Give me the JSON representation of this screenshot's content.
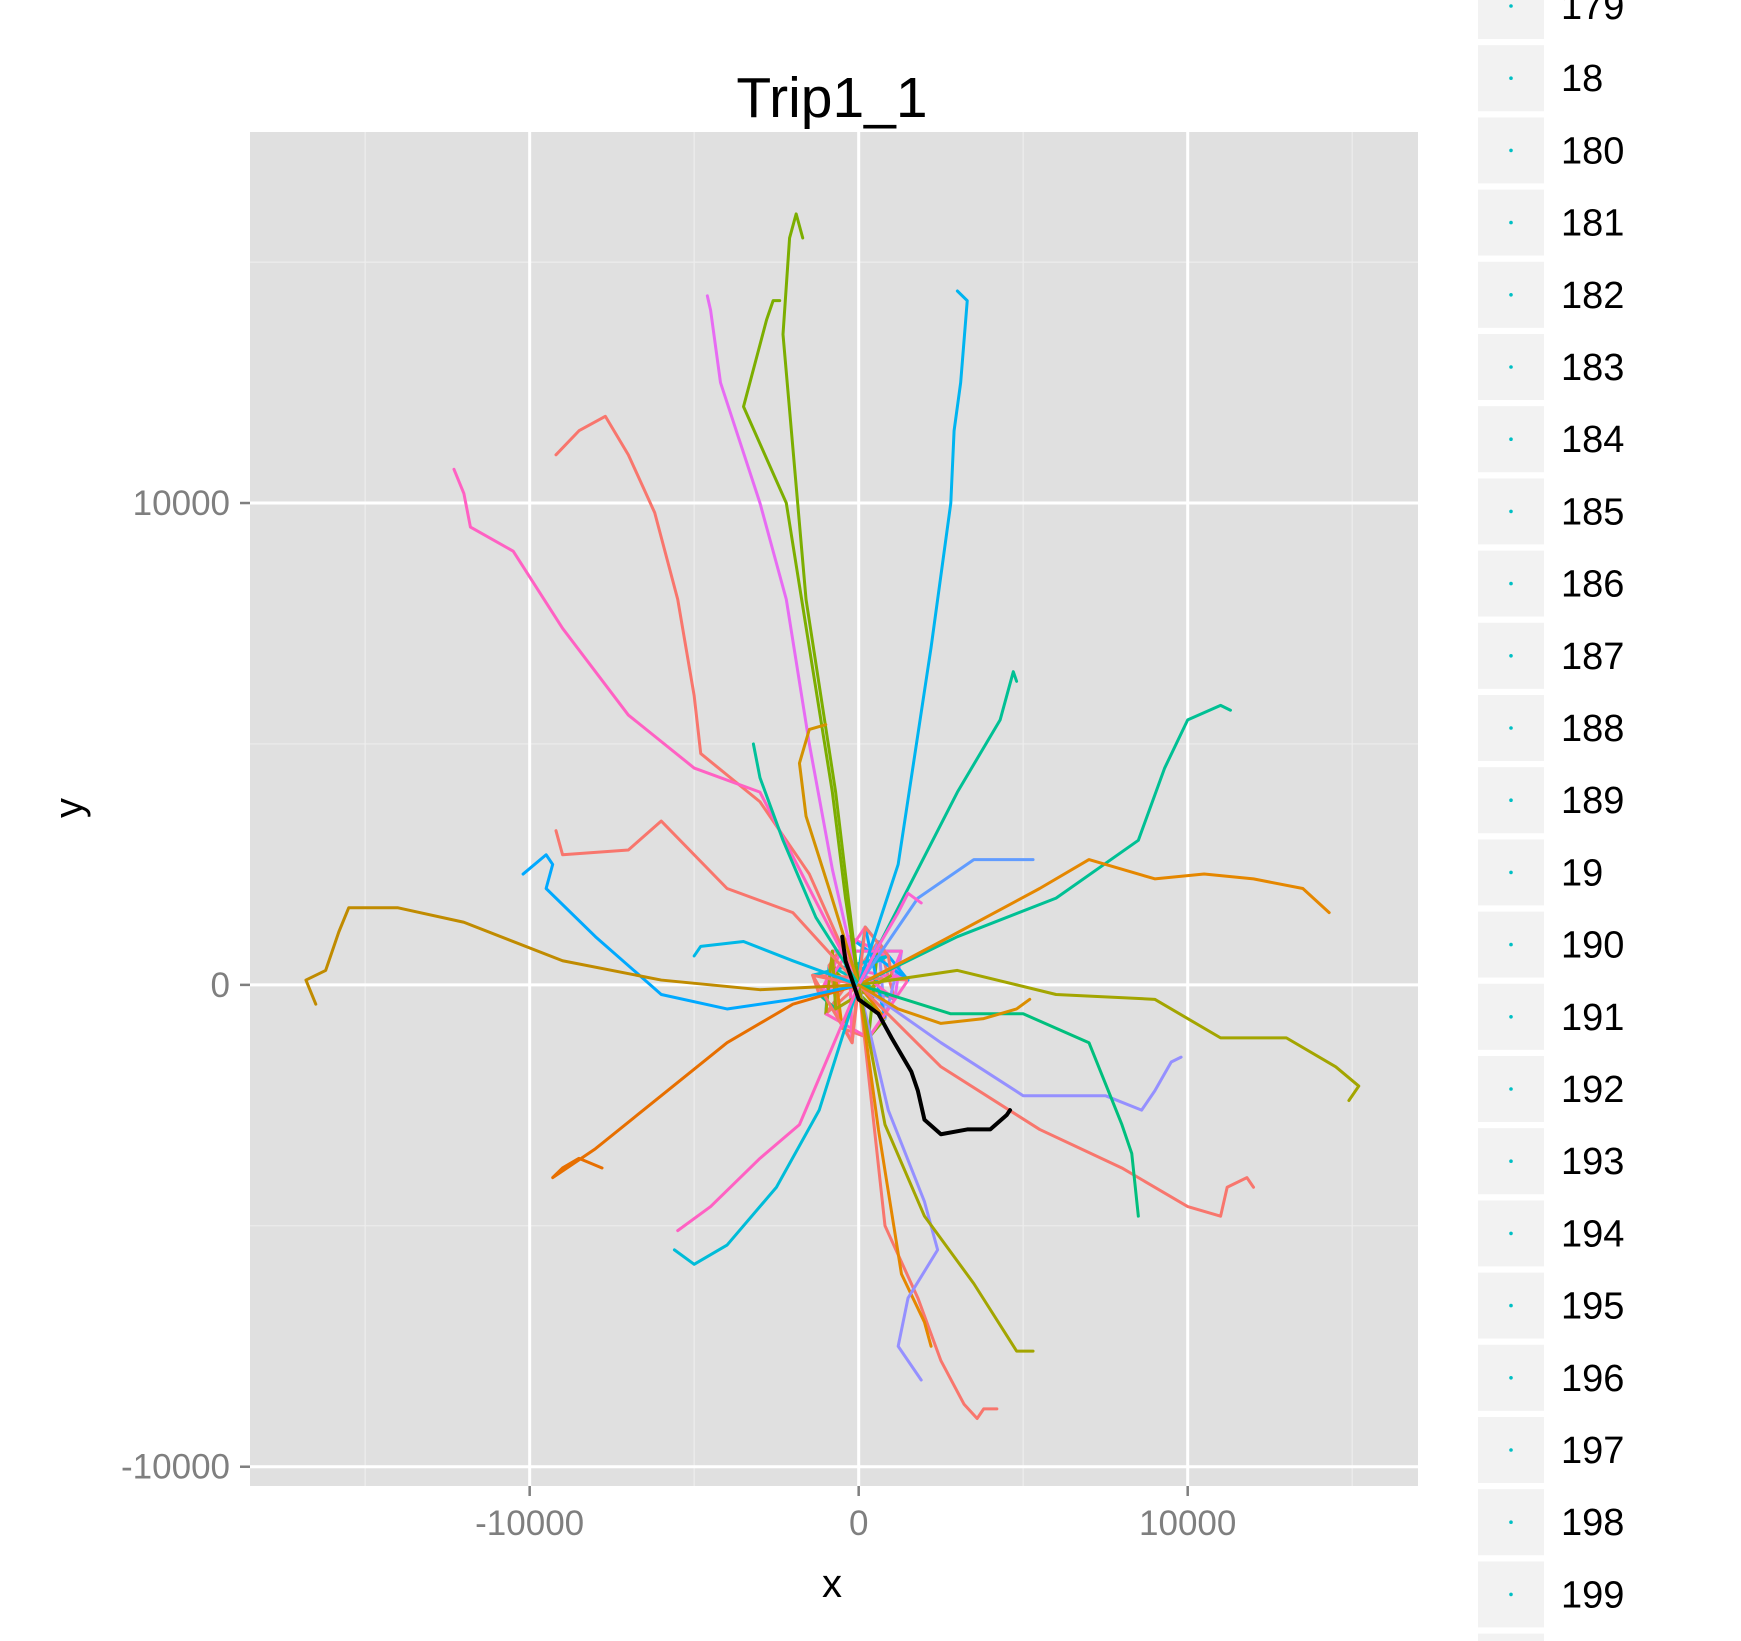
{
  "chart_data": {
    "type": "line",
    "title": "Trip1_1",
    "xlabel": "x",
    "ylabel": "y",
    "xlim": [
      -18500,
      17000
    ],
    "ylim": [
      -10400,
      17700
    ],
    "x_ticks": [
      -10000,
      0,
      10000
    ],
    "x_tick_labels": [
      "-10000",
      "0",
      "10000"
    ],
    "y_ticks": [
      -10000,
      0,
      10000
    ],
    "y_tick_labels": [
      "-10000",
      "0",
      "10000"
    ],
    "grid": true,
    "panel_background": "#e0e0e0",
    "legend_position": "right",
    "legend": {
      "entries": [
        "179",
        "18",
        "180",
        "181",
        "182",
        "183",
        "184",
        "185",
        "186",
        "187",
        "188",
        "189",
        "19",
        "190",
        "191",
        "192",
        "193",
        "194",
        "195",
        "196",
        "197",
        "198",
        "199"
      ],
      "key_color": "#00bfc4"
    },
    "highlight": {
      "name": "Trip1_1",
      "color": "#000000",
      "x": [
        -500,
        -400,
        0,
        600,
        1000,
        1600,
        1800,
        2000,
        2500,
        3300,
        4000,
        4500,
        4600
      ],
      "y": [
        1000,
        500,
        -300,
        -600,
        -1100,
        -1800,
        -2200,
        -2800,
        -3100,
        -3000,
        -3000,
        -2700,
        -2600
      ]
    },
    "series": [
      {
        "color": "#f8766d",
        "x": [
          0,
          400,
          800,
          1800,
          2500,
          3200,
          3600,
          3800,
          4200
        ],
        "y": [
          0,
          -2500,
          -5000,
          -6500,
          -7800,
          -8700,
          -9000,
          -8800,
          -8800
        ]
      },
      {
        "color": "#e76bf3",
        "x": [
          0,
          -800,
          -1500,
          -2200,
          -3000,
          -4200,
          -4500,
          -4600
        ],
        "y": [
          0,
          2400,
          5000,
          8000,
          10000,
          12500,
          14000,
          14300
        ]
      },
      {
        "color": "#7cae00",
        "x": [
          0,
          -400,
          -800,
          -1500,
          -2200,
          -3500,
          -2800,
          -2600,
          -2400
        ],
        "y": [
          0,
          1800,
          4000,
          7000,
          10000,
          12000,
          13800,
          14200,
          14200
        ]
      },
      {
        "color": "#7cae00",
        "x": [
          0,
          -700,
          -1600,
          -2300,
          -2100,
          -1900,
          -1700
        ],
        "y": [
          0,
          4000,
          8000,
          13500,
          15500,
          16000,
          15500
        ]
      },
      {
        "color": "#00b4f0",
        "x": [
          0,
          1200,
          2200,
          2800,
          2900,
          3100,
          3300,
          3000
        ],
        "y": [
          0,
          2500,
          7000,
          10000,
          11500,
          12500,
          14200,
          14400
        ]
      },
      {
        "color": "#f8766d",
        "x": [
          0,
          -1500,
          -3000,
          -4800,
          -5000,
          -5500,
          -6200,
          -7000,
          -7700,
          -8500,
          -9200
        ],
        "y": [
          0,
          2300,
          3800,
          4800,
          6000,
          8000,
          9800,
          11000,
          11800,
          11500,
          11000
        ]
      },
      {
        "color": "#ff61c3",
        "x": [
          0,
          -1500,
          -3000,
          -5000,
          -7000,
          -9000,
          -10500,
          -11800,
          -12000,
          -12300
        ],
        "y": [
          0,
          2000,
          4000,
          4500,
          5600,
          7400,
          9000,
          9500,
          10200,
          10700
        ]
      },
      {
        "color": "#00c094",
        "x": [
          0,
          1500,
          3000,
          4300,
          4700,
          4800
        ],
        "y": [
          0,
          2000,
          4000,
          5500,
          6500,
          6300
        ]
      },
      {
        "color": "#00c094",
        "x": [
          0,
          3000,
          6000,
          8500,
          9300,
          10000,
          11000,
          11300
        ],
        "y": [
          0,
          1000,
          1800,
          3000,
          4500,
          5500,
          5800,
          5700
        ]
      },
      {
        "color": "#e58700",
        "x": [
          0,
          2500,
          5500,
          7000,
          9000,
          10500,
          12000,
          13500,
          14300
        ],
        "y": [
          0,
          900,
          2000,
          2600,
          2200,
          2300,
          2200,
          2000,
          1500
        ]
      },
      {
        "color": "#a3a500",
        "x": [
          0,
          3000,
          6000,
          9000,
          11000,
          13000,
          14500,
          15200,
          14900
        ],
        "y": [
          0,
          300,
          -200,
          -300,
          -1100,
          -1100,
          -1700,
          -2100,
          -2400
        ]
      },
      {
        "color": "#9590ff",
        "x": [
          0,
          2500,
          5000,
          7500,
          8600,
          9000,
          9500,
          9800
        ],
        "y": [
          0,
          -1200,
          -2300,
          -2300,
          -2600,
          -2200,
          -1600,
          -1500
        ]
      },
      {
        "color": "#f8766d",
        "x": [
          0,
          2500,
          5500,
          8000,
          10000,
          11000,
          11200,
          11800,
          12000
        ],
        "y": [
          0,
          -1700,
          -3000,
          -3800,
          -4600,
          -4800,
          -4200,
          -4000,
          -4200
        ]
      },
      {
        "color": "#00bf7d",
        "x": [
          0,
          2800,
          5000,
          7000,
          8000,
          8300,
          8500
        ],
        "y": [
          0,
          -600,
          -600,
          -1200,
          -2900,
          -3500,
          -4800
        ]
      },
      {
        "color": "#e58700",
        "x": [
          0,
          600,
          1300,
          2000,
          2200
        ],
        "y": [
          0,
          -3000,
          -6000,
          -7000,
          -7500
        ]
      },
      {
        "color": "#9590ff",
        "x": [
          0,
          900,
          2000,
          2400,
          1500,
          1200,
          1900
        ],
        "y": [
          0,
          -2600,
          -4500,
          -5500,
          -6500,
          -7500,
          -8200
        ]
      },
      {
        "color": "#a3a500",
        "x": [
          0,
          800,
          2000,
          3500,
          4800,
          5300
        ],
        "y": [
          0,
          -2900,
          -4800,
          -6200,
          -7600,
          -7600
        ]
      },
      {
        "color": "#00bcd8",
        "x": [
          0,
          -1200,
          -2500,
          -4000,
          -5000,
          -5600
        ],
        "y": [
          0,
          -2600,
          -4200,
          -5400,
          -5800,
          -5500
        ]
      },
      {
        "color": "#ff61c3",
        "x": [
          0,
          -1800,
          -3000,
          -4500,
          -5500
        ],
        "y": [
          0,
          -2900,
          -3600,
          -4600,
          -5100
        ]
      },
      {
        "color": "#e76f00",
        "x": [
          0,
          -2000,
          -4000,
          -6000,
          -8000,
          -9300,
          -9000,
          -8500,
          -7800
        ],
        "y": [
          0,
          -400,
          -1200,
          -2300,
          -3400,
          -4000,
          -3800,
          -3600,
          -3800
        ]
      },
      {
        "color": "#00a9ff",
        "x": [
          0,
          -2000,
          -4000,
          -6000,
          -8000,
          -9500,
          -9300,
          -9500,
          -10200
        ],
        "y": [
          0,
          -300,
          -500,
          -200,
          1000,
          2000,
          2500,
          2700,
          2300
        ]
      },
      {
        "color": "#c08b00",
        "x": [
          0,
          -3000,
          -6000,
          -9000,
          -12000,
          -14000,
          -15500,
          -15800,
          -16200,
          -16800,
          -16500
        ],
        "y": [
          0,
          -100,
          100,
          500,
          1300,
          1600,
          1600,
          1100,
          300,
          100,
          -400
        ]
      },
      {
        "color": "#f8766d",
        "x": [
          0,
          -2000,
          -4000,
          -6000,
          -7000,
          -9000,
          -9200
        ],
        "y": [
          0,
          1500,
          2000,
          3400,
          2800,
          2700,
          3200
        ]
      },
      {
        "color": "#d39200",
        "x": [
          0,
          -900,
          -1600,
          -1800,
          -1500,
          -1000
        ],
        "y": [
          0,
          2000,
          3500,
          4600,
          5300,
          5400
        ]
      },
      {
        "color": "#00c19a",
        "x": [
          0,
          -1300,
          -2300,
          -3000,
          -3200
        ],
        "y": [
          0,
          1400,
          3000,
          4300,
          5000
        ]
      },
      {
        "color": "#619cff",
        "x": [
          0,
          1800,
          3500,
          5300
        ],
        "y": [
          0,
          1800,
          2600,
          2600
        ]
      },
      {
        "color": "#00b8e7",
        "x": [
          0,
          -2000,
          -3500,
          -4800,
          -5000
        ],
        "y": [
          0,
          500,
          900,
          800,
          600
        ]
      },
      {
        "color": "#fd61d1",
        "x": [
          0,
          600,
          1200,
          1500,
          1900
        ],
        "y": [
          0,
          800,
          1500,
          1900,
          1700
        ]
      },
      {
        "color": "#db8e00",
        "x": [
          0,
          1200,
          2500,
          3800,
          4800,
          5200
        ],
        "y": [
          0,
          -500,
          -800,
          -700,
          -500,
          -300
        ]
      }
    ],
    "hub": {
      "x": [
        0,
        900,
        -700,
        1100,
        -900,
        600,
        -500,
        1300,
        -1200,
        300,
        -300,
        800,
        -800,
        1500,
        -1400,
        200,
        -200,
        1000,
        -1000,
        0
      ],
      "y": [
        0,
        600,
        -500,
        -300,
        400,
        900,
        -900,
        700,
        -200,
        -1100,
        1000,
        -700,
        700,
        100,
        200,
        1200,
        -1200,
        200,
        -600,
        300
      ],
      "colors": [
        "#f8766d",
        "#ff61c3",
        "#e76bf3",
        "#00bfc4",
        "#7cae00",
        "#f8766d",
        "#9590ff",
        "#00c094",
        "#ff61c3",
        "#f8766d",
        "#00a9ff",
        "#e58700",
        "#fd61d1",
        "#f8766d",
        "#00bcd8",
        "#ff61c3",
        "#f8766d",
        "#a3a500",
        "#ff61c3",
        "#f8766d"
      ]
    }
  }
}
